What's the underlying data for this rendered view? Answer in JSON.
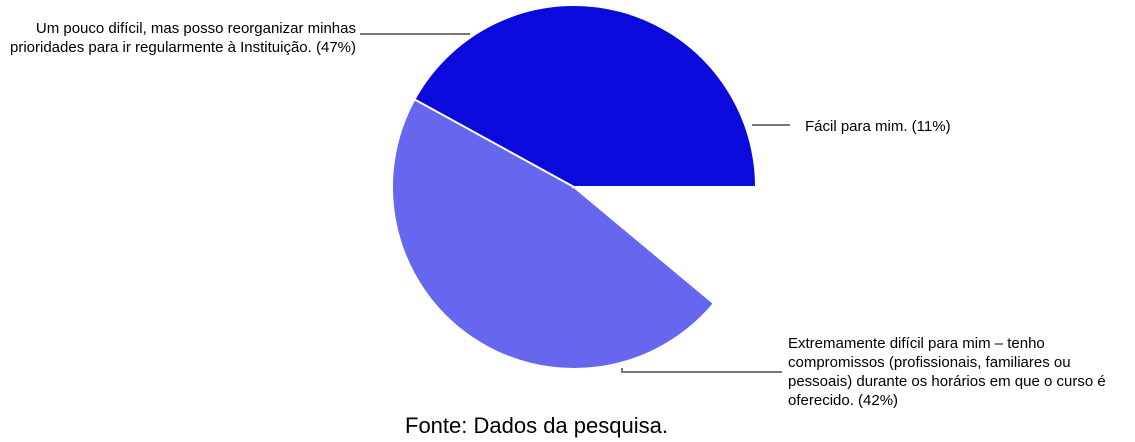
{
  "chart_data": {
    "type": "pie",
    "slices": [
      {
        "label": "Um pouco difícil, mas posso reorganizar minhas prioridades para ir regularmente à Instituição. (47%)",
        "value": 47,
        "color": "#6666ee"
      },
      {
        "label": "Fácil para mim. (11%)",
        "value": 11,
        "color": "#c8c8f5"
      },
      {
        "label": "Extremamente difícil para mim – tenho compromissos (profissionais, familiares ou pessoais) durante os horários em que o curso é oferecido. (42%)",
        "value": 42,
        "color": "#0a0adc"
      }
    ]
  },
  "caption": "Fonte: Dados da pesquisa."
}
